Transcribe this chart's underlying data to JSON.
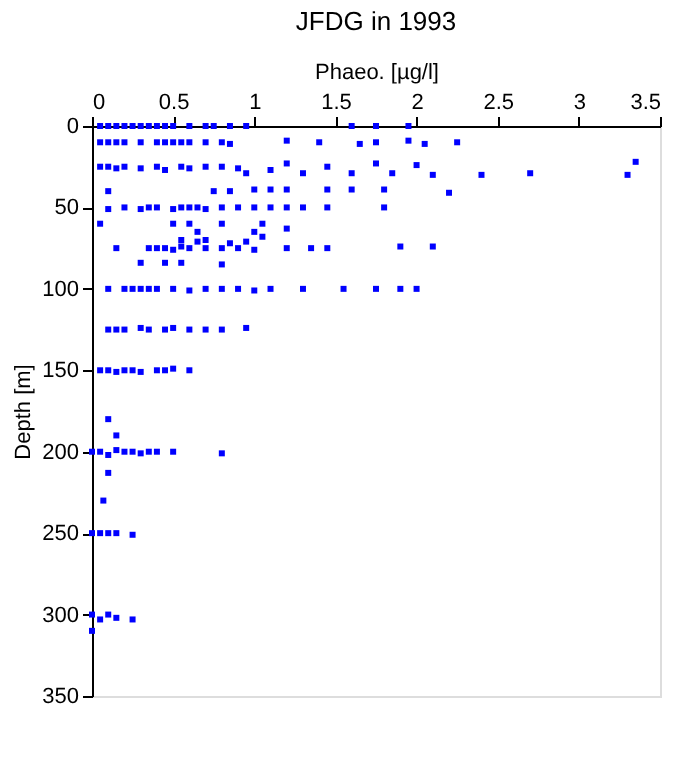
{
  "chart_data": {
    "type": "scatter",
    "title": "JFDG in 1993",
    "xlabel": "Phaeo. [µg/l]",
    "ylabel": "Depth [m]",
    "series": [
      {
        "color": "#0000ff",
        "marker": "square",
        "x": [
          0.05,
          0.1,
          0.15,
          0.2,
          0.25,
          0.3,
          0.35,
          0.4,
          0.45,
          0.5,
          0.6,
          0.7,
          0.75,
          0.85,
          0.95,
          1.6,
          1.75,
          1.95,
          0.05,
          0.1,
          0.15,
          0.2,
          0.3,
          0.4,
          0.45,
          0.5,
          0.55,
          0.6,
          0.7,
          0.8,
          0.85,
          1.2,
          1.4,
          1.65,
          1.75,
          1.95,
          2.05,
          2.25,
          0.05,
          0.1,
          0.15,
          0.2,
          0.3,
          0.4,
          0.45,
          0.55,
          0.6,
          0.7,
          0.8,
          0.9,
          0.95,
          1.1,
          1.2,
          1.3,
          1.45,
          1.6,
          1.75,
          1.85,
          2.0,
          2.1,
          2.4,
          2.7,
          3.3,
          3.35,
          0.1,
          0.75,
          0.85,
          1.0,
          1.1,
          1.2,
          1.45,
          1.6,
          1.8,
          2.2,
          0.1,
          0.2,
          0.3,
          0.35,
          0.4,
          0.5,
          0.55,
          0.6,
          0.65,
          0.7,
          0.8,
          0.9,
          1.0,
          1.1,
          1.2,
          1.3,
          1.45,
          1.8,
          0.05,
          0.5,
          0.6,
          0.8,
          1.05,
          1.2,
          0.65,
          1.0,
          0.55,
          0.65,
          0.7,
          0.85,
          0.95,
          1.05,
          0.15,
          0.35,
          0.4,
          0.45,
          0.5,
          0.55,
          0.6,
          0.7,
          0.8,
          0.9,
          1.0,
          1.2,
          1.35,
          1.45,
          1.9,
          2.1,
          0.3,
          0.45,
          0.55,
          0.8,
          0.1,
          0.2,
          0.25,
          0.3,
          0.35,
          0.4,
          0.5,
          0.6,
          0.7,
          0.8,
          0.9,
          1.0,
          1.1,
          1.3,
          1.55,
          1.75,
          1.9,
          2.0,
          0.1,
          0.15,
          0.2,
          0.3,
          0.35,
          0.45,
          0.5,
          0.6,
          0.7,
          0.8,
          0.95,
          0.05,
          0.1,
          0.15,
          0.2,
          0.25,
          0.3,
          0.4,
          0.45,
          0.5,
          0.6,
          0.1,
          0.15,
          0.0,
          0.05,
          0.1,
          0.15,
          0.2,
          0.25,
          0.3,
          0.35,
          0.4,
          0.5,
          0.8,
          0.1,
          0.07,
          0.0,
          0.05,
          0.1,
          0.15,
          0.25,
          0.0,
          0.05,
          0.1,
          0.15,
          0.25,
          0.0
        ],
        "values": [
          0,
          0,
          0,
          0,
          0,
          0,
          0,
          0,
          0,
          0,
          0,
          0,
          0,
          0,
          0,
          0,
          0,
          0,
          10,
          10,
          10,
          10,
          10,
          10,
          10,
          10,
          10,
          10,
          10,
          10,
          11,
          9,
          10,
          11,
          10,
          9,
          11,
          10,
          25,
          25,
          26,
          25,
          26,
          25,
          27,
          25,
          26,
          25,
          25,
          26,
          29,
          27,
          23,
          29,
          25,
          29,
          23,
          29,
          24,
          30,
          30,
          29,
          30,
          22,
          40,
          40,
          40,
          39,
          39,
          39,
          39,
          39,
          39,
          41,
          51,
          50,
          51,
          50,
          50,
          51,
          50,
          50,
          50,
          51,
          50,
          50,
          50,
          50,
          50,
          50,
          50,
          50,
          60,
          60,
          60,
          60,
          60,
          63,
          65,
          65,
          70,
          71,
          70,
          72,
          71,
          68,
          75,
          75,
          75,
          75,
          76,
          74,
          75,
          75,
          75,
          75,
          76,
          75,
          75,
          75,
          74,
          74,
          84,
          84,
          84,
          85,
          100,
          100,
          100,
          100,
          100,
          100,
          100,
          101,
          100,
          100,
          100,
          101,
          100,
          100,
          100,
          100,
          100,
          100,
          125,
          125,
          125,
          124,
          125,
          125,
          124,
          125,
          125,
          125,
          124,
          150,
          150,
          151,
          150,
          150,
          151,
          150,
          150,
          149,
          150,
          180,
          190,
          200,
          200,
          202,
          199,
          200,
          200,
          201,
          200,
          200,
          200,
          201,
          213,
          230,
          250,
          250,
          250,
          250,
          251,
          300,
          303,
          300,
          302,
          303,
          310
        ]
      }
    ],
    "xlim": [
      0,
      3.5
    ],
    "xticks": [
      0,
      0.5,
      1,
      1.5,
      2,
      2.5,
      3,
      3.5
    ],
    "ylim": [
      350,
      0
    ],
    "yticks": [
      0,
      50,
      100,
      150,
      200,
      250,
      300,
      350
    ],
    "grid": false
  }
}
